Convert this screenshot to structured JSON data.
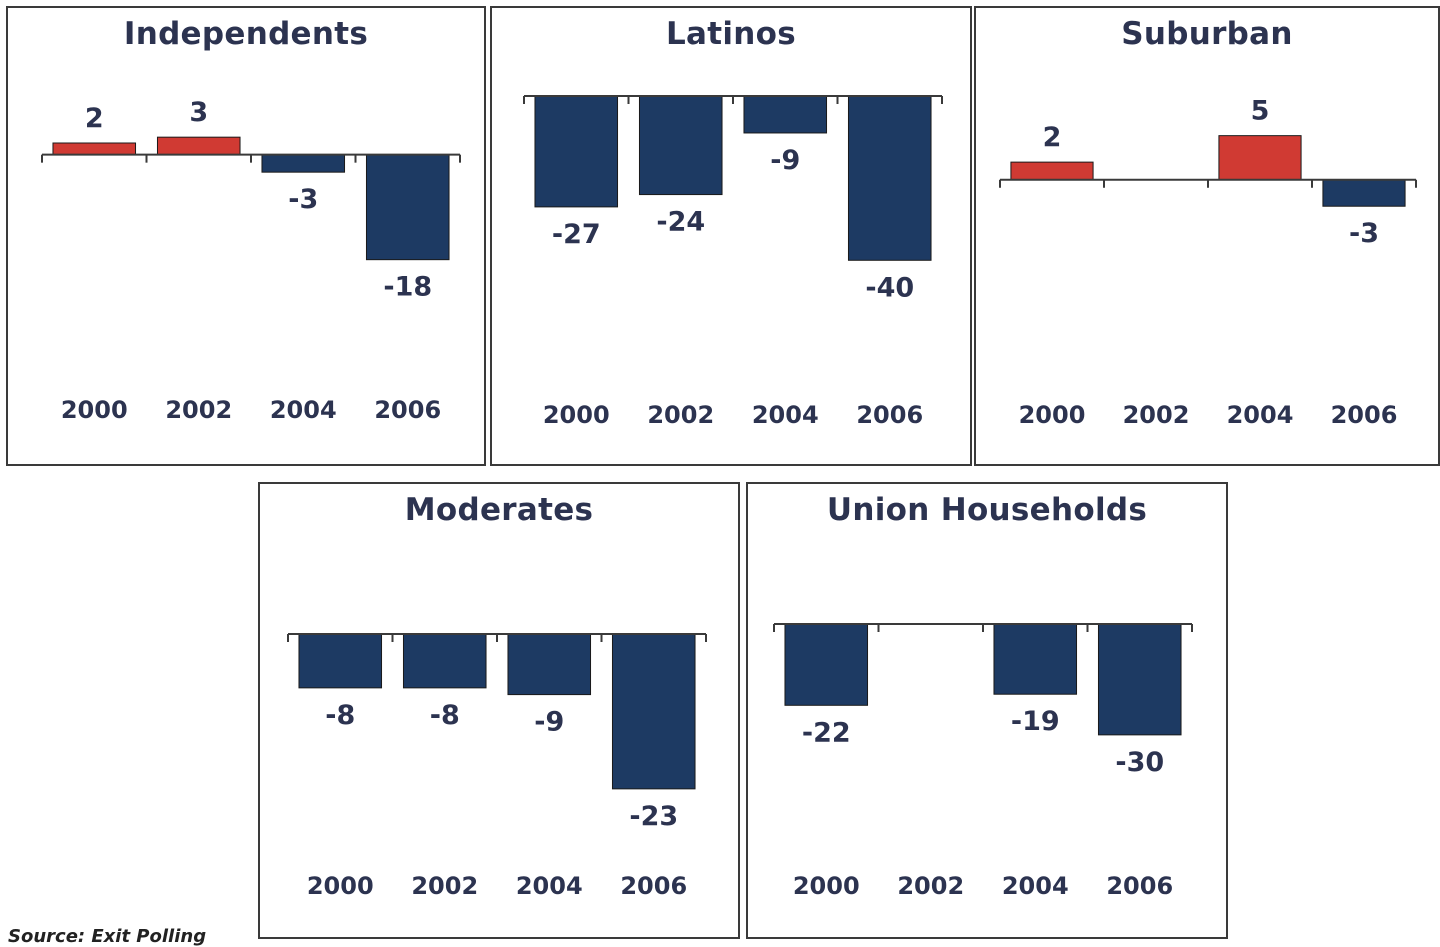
{
  "colors": {
    "positive": "#d03a33",
    "negative": "#1d3a63",
    "text": "#2c3350",
    "axis": "#3a3a3a"
  },
  "chart_data": [
    {
      "type": "bar",
      "title": "Independents",
      "categories": [
        "2000",
        "2002",
        "2004",
        "2006"
      ],
      "values": [
        2,
        3,
        -3,
        -18
      ],
      "ylim": [
        -28,
        8
      ]
    },
    {
      "type": "bar",
      "title": "Latinos",
      "categories": [
        "2000",
        "2002",
        "2004",
        "2006"
      ],
      "values": [
        -27,
        -24,
        -9,
        -40
      ],
      "ylim": [
        -56,
        0
      ]
    },
    {
      "type": "bar",
      "title": "Suburban",
      "categories": [
        "2000",
        "2002",
        "2004",
        "2006"
      ],
      "values": [
        2,
        null,
        5,
        -3
      ],
      "ylim": [
        -10,
        7
      ]
    },
    {
      "type": "bar",
      "title": "Moderates",
      "categories": [
        "2000",
        "2002",
        "2004",
        "2006"
      ],
      "values": [
        -8,
        -8,
        -9,
        -23
      ],
      "ylim": [
        -30,
        0
      ]
    },
    {
      "type": "bar",
      "title": "Union Households",
      "categories": [
        "2000",
        "2002",
        "2004",
        "2006"
      ],
      "values": [
        -22,
        null,
        -19,
        -30
      ],
      "ylim": [
        -46,
        0
      ]
    }
  ],
  "source": "Source: Exit Polling"
}
